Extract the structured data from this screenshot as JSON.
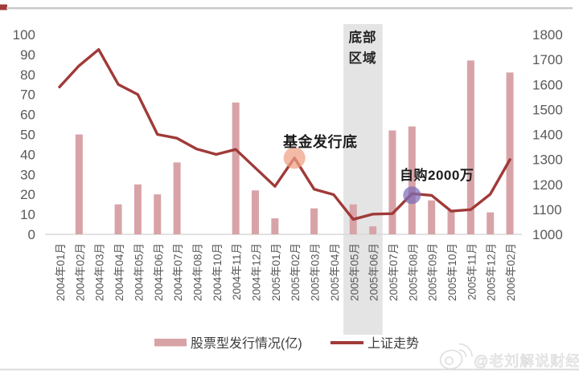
{
  "page": {
    "top_rule_color": "#c9c9c9",
    "top_left_accent_color": "#a23a38",
    "bottom_rule_color": "#d8d8d8",
    "background": "#ffffff"
  },
  "chart_data": {
    "type": "bar+line",
    "categories": [
      "2004年01月",
      "2004年02月",
      "2004年03月",
      "2004年04月",
      "2004年05月",
      "2004年06月",
      "2004年07月",
      "2004年08月",
      "2004年10月",
      "2004年11月",
      "2004年12月",
      "2005年01月",
      "2005年02月",
      "2005年03月",
      "2005年04月",
      "2005年05月",
      "2005年06月",
      "2005年07月",
      "2005年08月",
      "2005年09月",
      "2005年10月",
      "2005年11月",
      "2005年12月",
      "2006年02月"
    ],
    "series": [
      {
        "name": "股票型发行情况(亿)",
        "type": "bar",
        "axis": "left",
        "color": "#d8a3a7",
        "values": [
          null,
          50,
          null,
          15,
          25,
          20,
          36,
          null,
          null,
          66,
          22,
          8,
          null,
          13,
          null,
          15,
          4,
          52,
          54,
          17,
          12,
          87,
          11,
          81
        ]
      },
      {
        "name": "上证走势",
        "type": "line",
        "axis": "right",
        "color": "#a03a38",
        "values": [
          1590,
          1675,
          1740,
          1600,
          1560,
          1400,
          1385,
          1342,
          1320,
          1340,
          1266,
          1192,
          1306,
          1181,
          1159,
          1060,
          1081,
          1083,
          1163,
          1156,
          1093,
          1099,
          1161,
          1299
        ]
      }
    ],
    "left_axis": {
      "min": 0,
      "max": 100,
      "step": 10,
      "ticks": [
        0,
        10,
        20,
        30,
        40,
        50,
        60,
        70,
        80,
        90,
        100
      ]
    },
    "right_axis": {
      "min": 1000,
      "max": 1800,
      "step": 100,
      "ticks": [
        1000,
        1100,
        1200,
        1300,
        1400,
        1500,
        1600,
        1700,
        1800
      ]
    },
    "band": {
      "label": "底部区域",
      "label_line1": "底部",
      "label_line2": "区域",
      "start_category": "2005年05月",
      "end_category": "2005年06月",
      "color": "#e4e4e4"
    },
    "annotations": [
      {
        "text": "基金发行底",
        "category": "2005年02月",
        "marker": "circle",
        "marker_color": "#efa084"
      },
      {
        "text": "自购2000万",
        "category": "2005年08月",
        "marker": "circle",
        "marker_color": "#7d6cb9"
      }
    ],
    "legend": [
      {
        "label": "股票型发行情况(亿)",
        "swatch": "bar"
      },
      {
        "label": "上证走势",
        "swatch": "line"
      }
    ],
    "grid": false,
    "legend_position": "bottom"
  },
  "watermark": {
    "handle": "@老刘解说财经",
    "icon": "weibo-icon"
  }
}
